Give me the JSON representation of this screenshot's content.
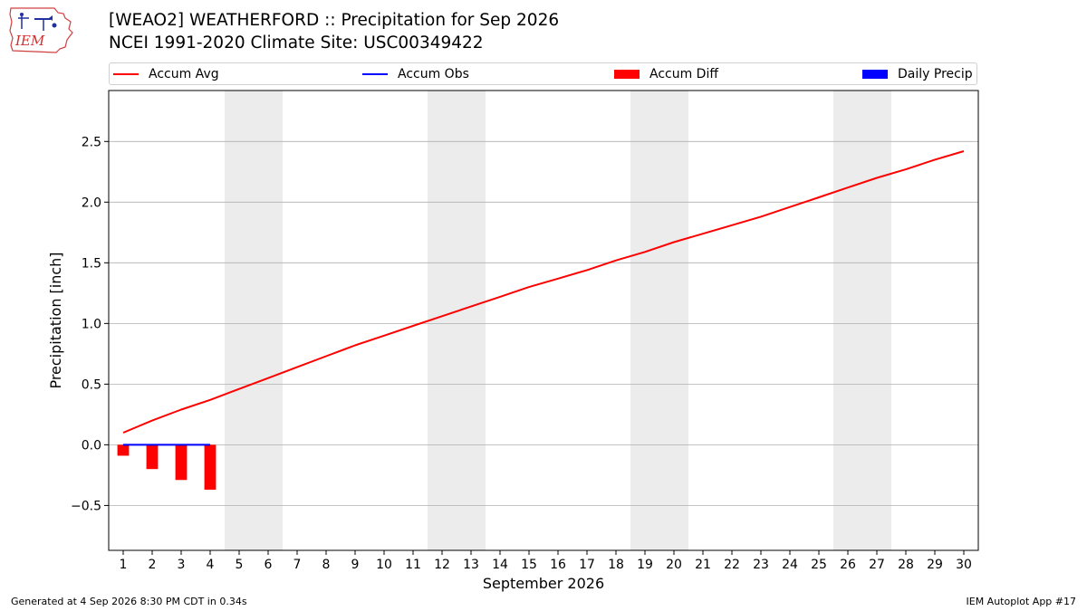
{
  "header": {
    "logo_text": "IEM",
    "title_line1": "[WEAO2] WEATHERFORD :: Precipitation for Sep 2026",
    "title_line2": "NCEI 1991-2020 Climate Site: USC00349422"
  },
  "legend": {
    "placement": "top",
    "items": [
      {
        "label": "Accum Avg",
        "kind": "line",
        "color": "#ff0000"
      },
      {
        "label": "Accum Obs",
        "kind": "line",
        "color": "#0000ff"
      },
      {
        "label": "Accum Diff",
        "kind": "bar",
        "color": "#ff0000"
      },
      {
        "label": "Daily Precip",
        "kind": "bar",
        "color": "#0000ff"
      }
    ]
  },
  "chart_data": {
    "type": "line",
    "xlabel": "September 2026",
    "ylabel": "Precipitation [inch]",
    "xlim": [
      0.5,
      30.5
    ],
    "ylim": [
      -0.87,
      2.92
    ],
    "yticks": [
      -0.5,
      0.0,
      0.5,
      1.0,
      1.5,
      2.0,
      2.5
    ],
    "ytick_labels": [
      "−0.5",
      "0.0",
      "0.5",
      "1.0",
      "1.5",
      "2.0",
      "2.5"
    ],
    "x": [
      1,
      2,
      3,
      4,
      5,
      6,
      7,
      8,
      9,
      10,
      11,
      12,
      13,
      14,
      15,
      16,
      17,
      18,
      19,
      20,
      21,
      22,
      23,
      24,
      25,
      26,
      27,
      28,
      29,
      30
    ],
    "x_tick_labels": [
      "1",
      "2",
      "3",
      "4",
      "5",
      "6",
      "7",
      "8",
      "9",
      "10",
      "11",
      "12",
      "13",
      "14",
      "15",
      "16",
      "17",
      "18",
      "19",
      "20",
      "21",
      "22",
      "23",
      "24",
      "25",
      "26",
      "27",
      "28",
      "29",
      "30"
    ],
    "grid": "horizontal",
    "weekend_shading": [
      [
        5,
        6
      ],
      [
        12,
        13
      ],
      [
        19,
        20
      ],
      [
        26,
        27
      ]
    ],
    "series": [
      {
        "name": "Accum Avg",
        "kind": "line",
        "color": "#ff0000",
        "x": [
          1,
          2,
          3,
          4,
          5,
          6,
          7,
          8,
          9,
          10,
          11,
          12,
          13,
          14,
          15,
          16,
          17,
          18,
          19,
          20,
          21,
          22,
          23,
          24,
          25,
          26,
          27,
          28,
          29,
          30
        ],
        "values": [
          0.1,
          0.2,
          0.29,
          0.37,
          0.46,
          0.55,
          0.64,
          0.73,
          0.82,
          0.9,
          0.98,
          1.06,
          1.14,
          1.22,
          1.3,
          1.37,
          1.44,
          1.52,
          1.59,
          1.67,
          1.74,
          1.81,
          1.88,
          1.96,
          2.04,
          2.12,
          2.2,
          2.27,
          2.35,
          2.42
        ]
      },
      {
        "name": "Accum Obs",
        "kind": "line",
        "color": "#0000ff",
        "x": [
          1,
          2,
          3,
          4
        ],
        "values": [
          0.0,
          0.0,
          0.0,
          0.0
        ]
      },
      {
        "name": "Accum Diff",
        "kind": "bar",
        "color": "#ff0000",
        "x": [
          1,
          2,
          3,
          4
        ],
        "values": [
          -0.09,
          -0.2,
          -0.29,
          -0.37
        ]
      },
      {
        "name": "Daily Precip",
        "kind": "bar",
        "color": "#0000ff",
        "x": [
          1,
          2,
          3,
          4
        ],
        "values": [
          0.0,
          0.0,
          0.0,
          0.0
        ]
      }
    ]
  },
  "footer": {
    "left": "Generated at 4 Sep 2026 8:30 PM CDT in 0.34s",
    "right": "IEM Autoplot App #17"
  }
}
